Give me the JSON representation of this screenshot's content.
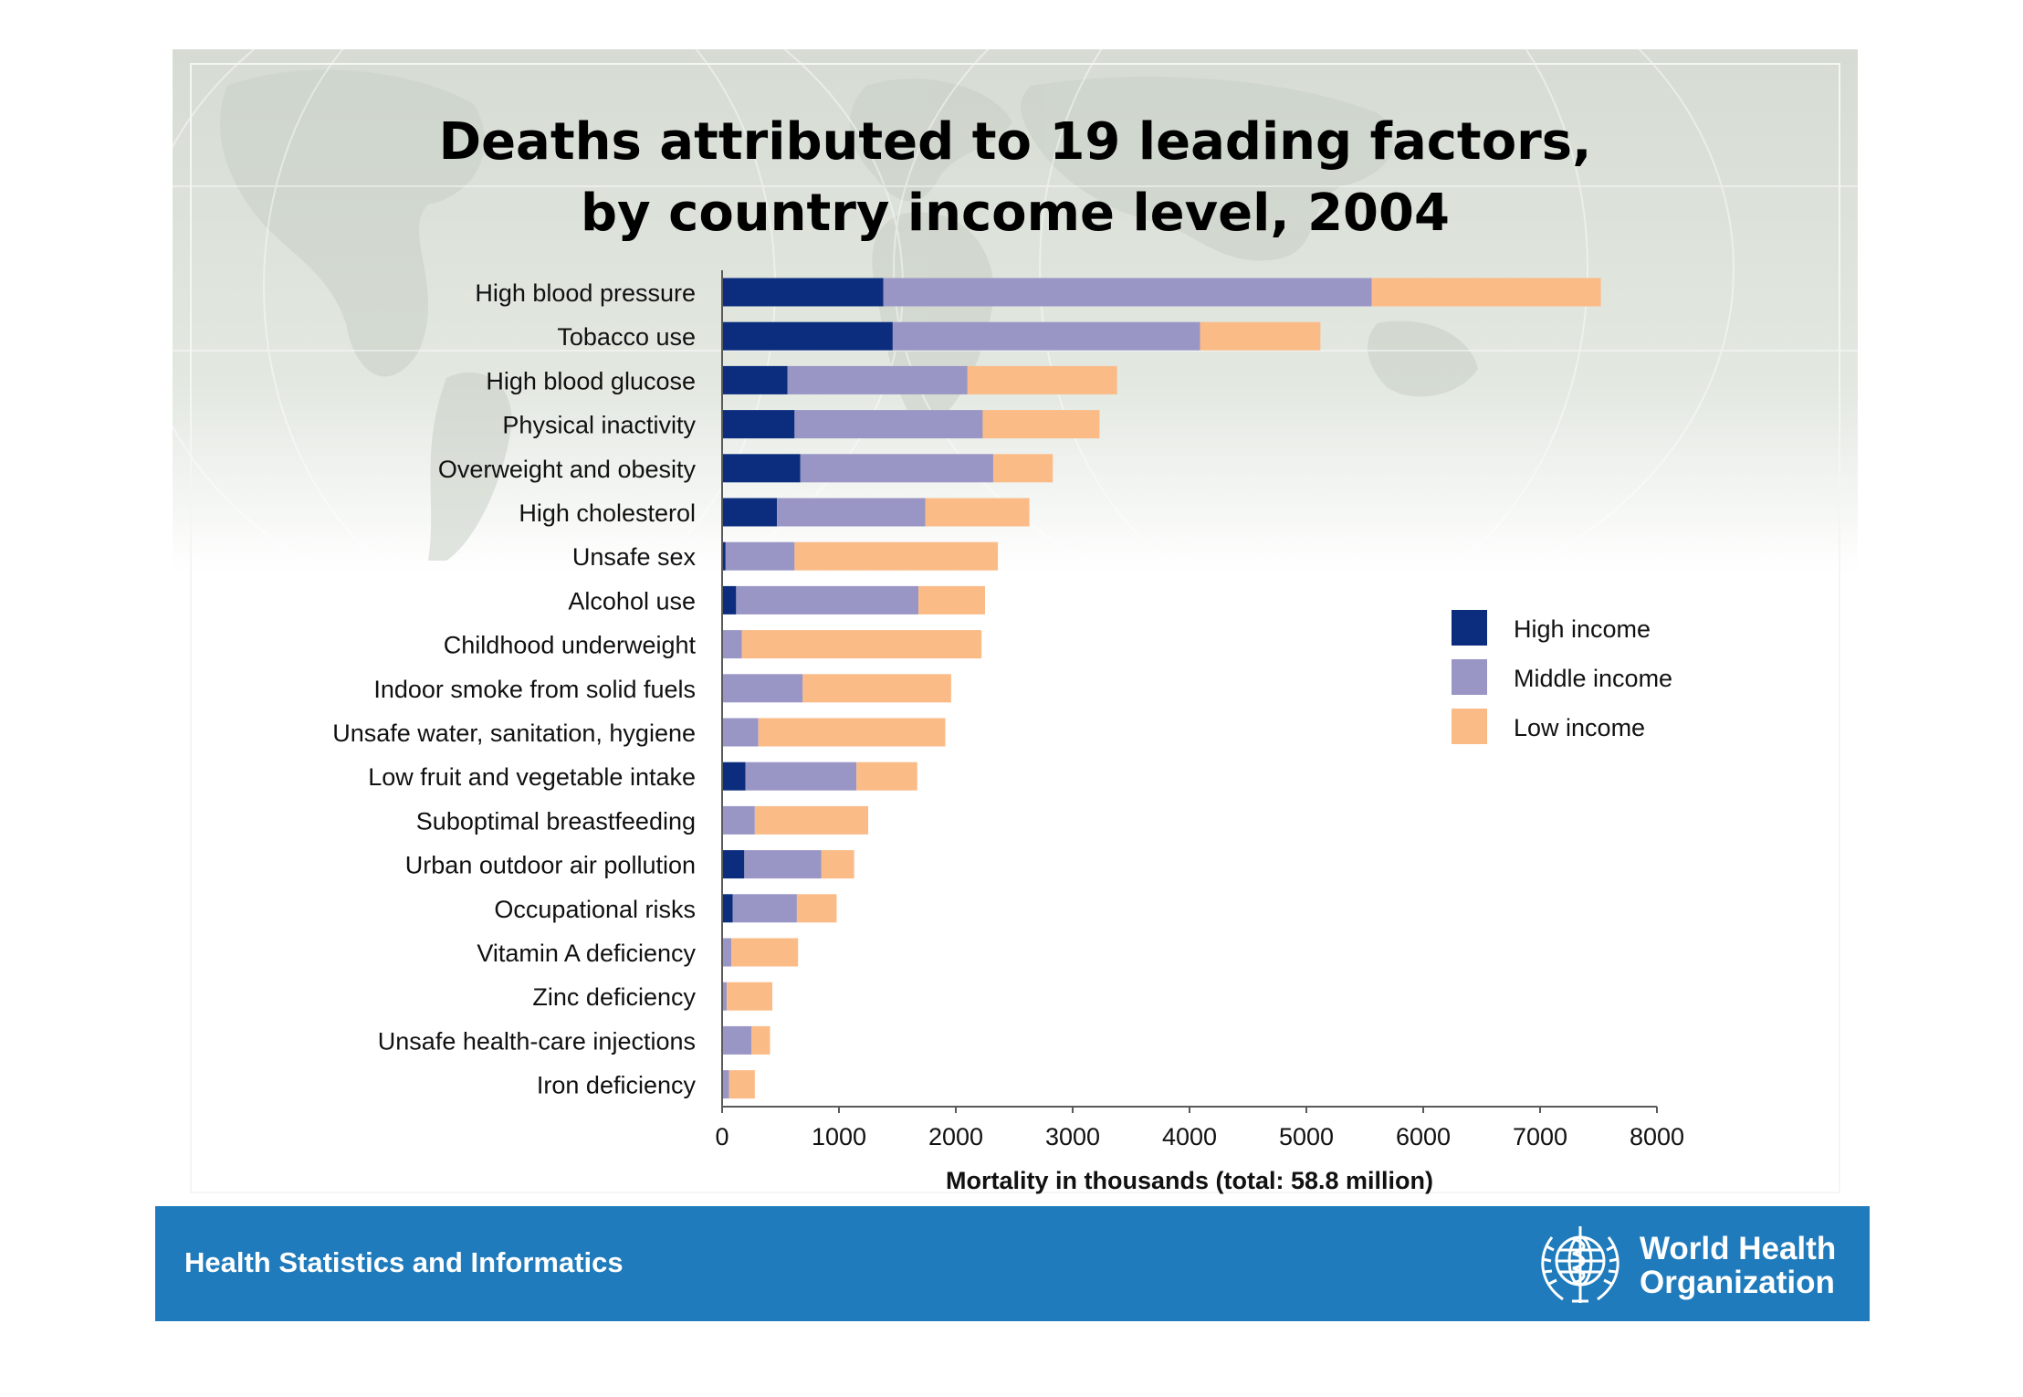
{
  "page": {
    "title_line1": "Deaths attributed to 19 leading factors,",
    "title_line2": "by country income level, 2004",
    "footer_label": "Health Statistics and Informatics",
    "org_name_line1": "World Health",
    "org_name_line2": "Organization"
  },
  "colors": {
    "high_income": "#0c2d7e",
    "middle_income": "#9996c5",
    "low_income": "#fbbb87",
    "axis": "#5a5a5a",
    "footer": "#1f7bbc"
  },
  "chart_data": {
    "type": "bar",
    "orientation": "horizontal",
    "stacked": true,
    "title": "Deaths attributed to 19 leading factors, by country income level, 2004",
    "xlabel": "Mortality in thousands (total: 58.8 million)",
    "ylabel": "",
    "xlim": [
      0,
      8000
    ],
    "xticks": [
      0,
      1000,
      2000,
      3000,
      4000,
      5000,
      6000,
      7000,
      8000
    ],
    "grid": false,
    "legend_position": "right",
    "categories": [
      "High blood pressure",
      "Tobacco use",
      "High blood glucose",
      "Physical inactivity",
      "Overweight and obesity",
      "High cholesterol",
      "Unsafe sex",
      "Alcohol use",
      "Childhood underweight",
      "Indoor smoke from solid fuels",
      "Unsafe water, sanitation, hygiene",
      "Low fruit and vegetable intake",
      "Suboptimal breastfeeding",
      "Urban outdoor air pollution",
      "Occupational risks",
      "Vitamin A deficiency",
      "Zinc deficiency",
      "Unsafe health-care injections",
      "Iron deficiency"
    ],
    "series": [
      {
        "name": "High income",
        "values": [
          1380,
          1460,
          560,
          620,
          670,
          470,
          30,
          120,
          0,
          0,
          0,
          200,
          0,
          190,
          90,
          0,
          0,
          0,
          0
        ]
      },
      {
        "name": "Middle income",
        "values": [
          4180,
          2630,
          1540,
          1610,
          1650,
          1270,
          590,
          1560,
          170,
          690,
          310,
          950,
          280,
          660,
          550,
          80,
          40,
          250,
          60
        ]
      },
      {
        "name": "Low income",
        "values": [
          1960,
          1030,
          1280,
          1000,
          510,
          890,
          1740,
          570,
          2050,
          1270,
          1600,
          520,
          970,
          280,
          340,
          570,
          390,
          160,
          220
        ]
      }
    ]
  }
}
